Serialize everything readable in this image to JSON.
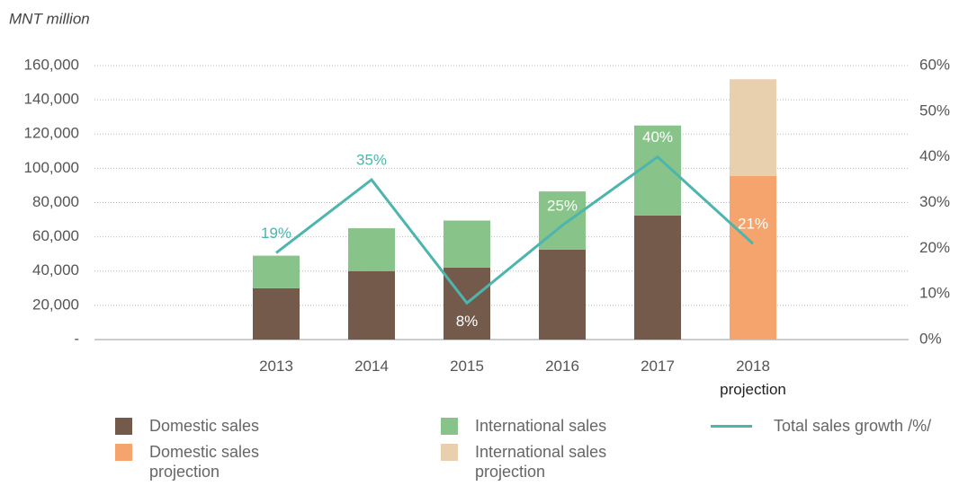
{
  "chart_data": {
    "type": "bar",
    "y_axis_label": "MNT million",
    "categories": [
      "2013",
      "2014",
      "2015",
      "2016",
      "2017",
      "2018\nprojection"
    ],
    "series": [
      {
        "name": "Domestic sales",
        "color": "#745a4a",
        "values": [
          30000,
          40000,
          42000,
          52500,
          72500,
          null
        ]
      },
      {
        "name": "International sales",
        "color": "#88c48a",
        "values": [
          19000,
          25000,
          27500,
          34000,
          52500,
          null
        ]
      },
      {
        "name": "Domestic sales projection",
        "color": "#f4a46c",
        "values": [
          null,
          null,
          null,
          null,
          null,
          95500
        ]
      },
      {
        "name": "International sales projection",
        "color": "#e8cfae",
        "values": [
          null,
          null,
          null,
          null,
          null,
          56500
        ]
      },
      {
        "name": "Total sales growth /%/",
        "type": "line",
        "axis": "y2",
        "color": "#4cb5ad",
        "values": [
          19,
          35,
          8,
          25,
          40,
          21
        ],
        "value_labels": [
          "19%",
          "35%",
          "8%",
          "25%",
          "40%",
          "21%"
        ]
      }
    ],
    "ylim": [
      0,
      160000
    ],
    "yticks": [
      {
        "value": 0,
        "label": "-"
      },
      {
        "value": 20000,
        "label": "20,000"
      },
      {
        "value": 40000,
        "label": "40,000"
      },
      {
        "value": 60000,
        "label": "60,000"
      },
      {
        "value": 80000,
        "label": "80,000"
      },
      {
        "value": 100000,
        "label": "100,000"
      },
      {
        "value": 120000,
        "label": "120,000"
      },
      {
        "value": 140000,
        "label": "140,000"
      },
      {
        "value": 160000,
        "label": "160,000"
      }
    ],
    "y2lim": [
      0,
      60
    ],
    "y2ticks": [
      {
        "value": 0,
        "label": "0%"
      },
      {
        "value": 10,
        "label": "10%"
      },
      {
        "value": 20,
        "label": "20%"
      },
      {
        "value": 30,
        "label": "30%"
      },
      {
        "value": 40,
        "label": "40%"
      },
      {
        "value": 50,
        "label": "50%"
      },
      {
        "value": 60,
        "label": "60%"
      }
    ],
    "grid": true,
    "legend": "bottom"
  }
}
